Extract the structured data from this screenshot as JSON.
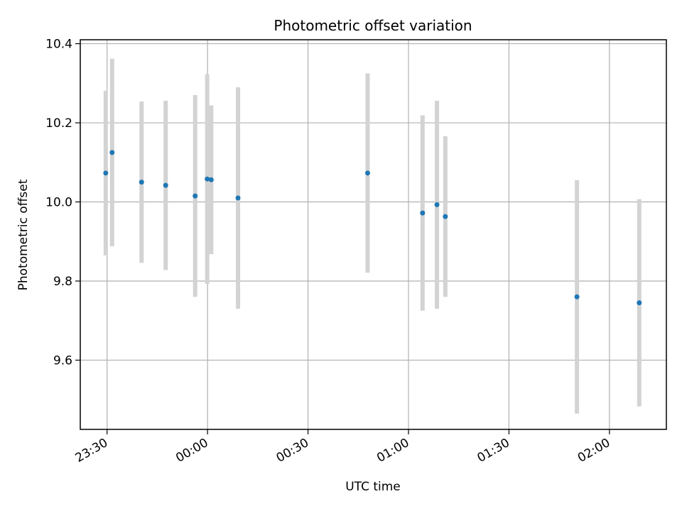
{
  "chart_data": {
    "type": "scatter",
    "title": "Photometric offset variation",
    "xlabel": "UTC time",
    "ylabel": "Photometric offset",
    "x_axis": {
      "kind": "time",
      "range": [
        "23:22",
        "02:17"
      ],
      "ticks": [
        "23:30",
        "00:00",
        "00:30",
        "01:00",
        "01:30",
        "02:00"
      ]
    },
    "y_axis": {
      "range": [
        9.425,
        10.41
      ],
      "ticks": [
        9.6,
        9.8,
        10.0,
        10.2,
        10.4
      ],
      "tick_labels": [
        "9.6",
        "9.8",
        "10.0",
        "10.2",
        "10.4"
      ]
    },
    "grid": true,
    "series": [
      {
        "marker_color": "#1f77b4",
        "errorbar_color": "#d3d3d3",
        "points": [
          {
            "x": "23:29.6",
            "y": 10.073,
            "err": 0.208
          },
          {
            "x": "23:31.5",
            "y": 10.125,
            "err": 0.237
          },
          {
            "x": "23:40.3",
            "y": 10.05,
            "err": 0.204
          },
          {
            "x": "23:47.5",
            "y": 10.042,
            "err": 0.214
          },
          {
            "x": "23:56.3",
            "y": 10.015,
            "err": 0.255
          },
          {
            "x": "23:59.9",
            "y": 10.058,
            "err": 0.265
          },
          {
            "x": "00:01.1",
            "y": 10.056,
            "err": 0.188
          },
          {
            "x": "00:09.1",
            "y": 10.01,
            "err": 0.28
          },
          {
            "x": "00:47.8",
            "y": 10.073,
            "err": 0.252
          },
          {
            "x": "01:04.2",
            "y": 9.972,
            "err": 0.247
          },
          {
            "x": "01:08.5",
            "y": 9.993,
            "err": 0.263
          },
          {
            "x": "01:11.0",
            "y": 9.963,
            "err": 0.203
          },
          {
            "x": "01:50.3",
            "y": 9.76,
            "err": 0.295
          },
          {
            "x": "02:08.9",
            "y": 9.745,
            "err": 0.262
          }
        ]
      }
    ]
  }
}
